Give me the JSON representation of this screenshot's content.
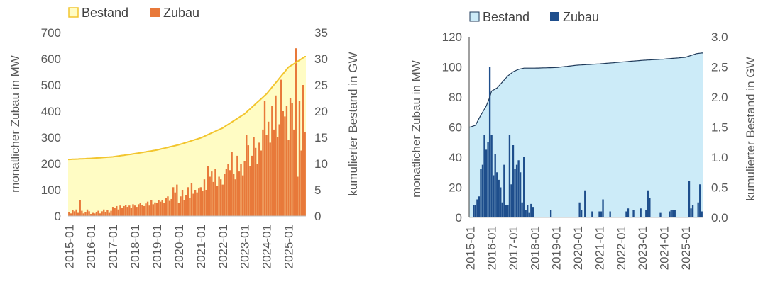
{
  "chart_data": [
    {
      "type": "bar",
      "colors": {
        "bestand_fill": "#FFFCC4",
        "bestand_line": "#F2C52E",
        "zubau": "#E8793A",
        "axis": "#BFBFBF"
      },
      "legend": [
        {
          "label": "Bestand",
          "kind": "bestand"
        },
        {
          "label": "Zubau",
          "kind": "zubau"
        }
      ],
      "ylabel_left": "monatlicher Zubau in MW",
      "ylabel_right": "kumulierter Bestand in GW",
      "ylim_left": [
        0,
        700
      ],
      "yticks_left": [
        "0",
        "100",
        "200",
        "300",
        "400",
        "500",
        "600",
        "700"
      ],
      "ylim_right": [
        0,
        35
      ],
      "yticks_right": [
        "0",
        "5",
        "10",
        "15",
        "20",
        "25",
        "30",
        "35"
      ],
      "xticks": [
        "2015-01",
        "2016-01",
        "2017-01",
        "2018-01",
        "2019-01",
        "2020-01",
        "2021-01",
        "2022-01",
        "2023-01",
        "2024-01",
        "2025-01"
      ],
      "months": 130,
      "bestand_gw_by_month": {
        "0": 10.8,
        "12": 11.0,
        "24": 11.3,
        "36": 11.9,
        "48": 12.6,
        "60": 13.6,
        "72": 14.9,
        "84": 16.8,
        "96": 19.5,
        "108": 23.3,
        "120": 28.4,
        "129": 30.4
      },
      "zubau_mw": [
        15,
        10,
        22,
        18,
        25,
        12,
        60,
        20,
        10,
        15,
        25,
        18,
        8,
        12,
        10,
        15,
        20,
        10,
        18,
        25,
        15,
        22,
        12,
        20,
        35,
        30,
        38,
        25,
        40,
        32,
        38,
        42,
        35,
        40,
        30,
        45,
        40,
        35,
        45,
        50,
        42,
        38,
        48,
        55,
        40,
        60,
        45,
        52,
        50,
        60,
        55,
        62,
        50,
        70,
        75,
        58,
        65,
        110,
        90,
        120,
        50,
        75,
        100,
        60,
        80,
        110,
        70,
        125,
        85,
        100,
        90,
        105,
        110,
        95,
        140,
        100,
        190,
        150,
        170,
        130,
        180,
        115,
        150,
        140,
        120,
        160,
        180,
        200,
        175,
        245,
        160,
        140,
        230,
        170,
        200,
        155,
        210,
        310,
        270,
        190,
        230,
        300,
        260,
        200,
        280,
        250,
        330,
        440,
        310,
        360,
        280,
        420,
        330,
        460,
        300,
        350,
        520,
        400,
        380,
        420,
        290,
        450,
        430,
        330,
        640,
        150,
        440,
        250,
        500,
        320
      ]
    },
    {
      "type": "bar",
      "colors": {
        "bestand_fill": "#CCEBF8",
        "bestand_line": "#1F3A5A",
        "zubau": "#1E4E8C",
        "axis": "#BFBFBF"
      },
      "legend": [
        {
          "label": "Bestand",
          "kind": "bestand"
        },
        {
          "label": "Zubau",
          "kind": "zubau"
        }
      ],
      "ylabel_left": "monatlicher Zubau in MW",
      "ylabel_right": "kumulierter Bestand in GW",
      "ylim_left": [
        0,
        120
      ],
      "yticks_left": [
        "0",
        "20",
        "40",
        "60",
        "80",
        "100",
        "120"
      ],
      "ylim_right": [
        0,
        3
      ],
      "yticks_right": [
        "0.0",
        "0.5",
        "1.0",
        "1.5",
        "2.0",
        "2.5",
        "3.0"
      ],
      "xticks": [
        "2015-01",
        "2016-01",
        "2017-01",
        "2018-01",
        "2019-01",
        "2020-01",
        "2021-01",
        "2022-01",
        "2023-01",
        "2024-01",
        "2025-01"
      ],
      "months": 130,
      "bestand_gw_by_month": {
        "0": 1.5,
        "3": 1.53,
        "6": 1.7,
        "9": 1.85,
        "11": 2.0,
        "12": 2.1,
        "15": 2.15,
        "18": 2.25,
        "21": 2.35,
        "24": 2.42,
        "27": 2.46,
        "30": 2.48,
        "36": 2.48,
        "48": 2.49,
        "60": 2.53,
        "72": 2.55,
        "84": 2.58,
        "96": 2.61,
        "108": 2.63,
        "120": 2.66,
        "126": 2.72,
        "129": 2.73
      },
      "zubau_mw": [
        0,
        0,
        8,
        8,
        12,
        14,
        32,
        35,
        55,
        45,
        50,
        100,
        55,
        28,
        42,
        30,
        25,
        20,
        10,
        35,
        8,
        8,
        55,
        22,
        48,
        32,
        35,
        38,
        30,
        10,
        40,
        5,
        8,
        3,
        9,
        7,
        0,
        0,
        0,
        0,
        0,
        0,
        0,
        0,
        0,
        5,
        0,
        0,
        0,
        0,
        0,
        0,
        0,
        0,
        0,
        0,
        0,
        0,
        0,
        0,
        0,
        10,
        5,
        0,
        18,
        0,
        0,
        0,
        4,
        0,
        0,
        0,
        4,
        4,
        12,
        0,
        0,
        0,
        4,
        0,
        0,
        0,
        0,
        0,
        0,
        0,
        0,
        4,
        6,
        0,
        0,
        5,
        0,
        0,
        0,
        6,
        0,
        0,
        5,
        18,
        13,
        0,
        0,
        0,
        0,
        0,
        3,
        0,
        0,
        0,
        0,
        4,
        5,
        5,
        5,
        0,
        0,
        0,
        0,
        0,
        0,
        0,
        24,
        6,
        8,
        0,
        0,
        10,
        22,
        4
      ]
    }
  ]
}
